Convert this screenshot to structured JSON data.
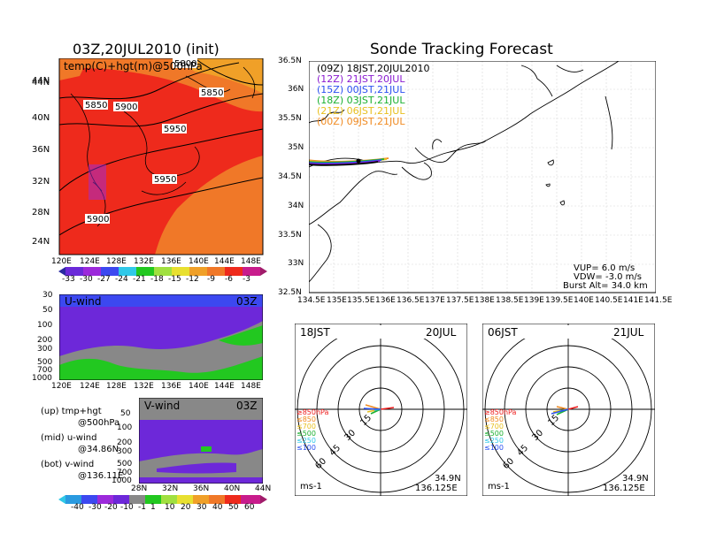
{
  "titles": {
    "left": "03Z,20JUL2010 (init)",
    "right": "Sonde Tracking Forecast"
  },
  "colors": {
    "hot": "#ee2a1c",
    "orange": "#f07828",
    "amber": "#f0a028",
    "purple": "#6d28d9",
    "blue": "#3355ee",
    "green": "#22c820",
    "gray": "#888888",
    "ltblue": "#30c8e8"
  },
  "map500": {
    "label": "temp(C)+hgt(m)@500hPa",
    "x_ticks": [
      "120E",
      "124E",
      "128E",
      "132E",
      "136E",
      "140E",
      "144E",
      "148E"
    ],
    "y_ticks": [
      "44N",
      "40N",
      "36N",
      "32N",
      "28N",
      "24N"
    ],
    "contour_labels": [
      "5800",
      "5850",
      "5850",
      "5900",
      "5950",
      "5950",
      "5900"
    ],
    "colorbar": [
      "-33",
      "-30",
      "-27",
      "-24",
      "-21",
      "-18",
      "-15",
      "-12",
      "-9",
      "-6",
      "-3"
    ]
  },
  "uwind": {
    "label": "U-wind",
    "time": "03Z",
    "y_ticks": [
      "30",
      "50",
      "100",
      "200",
      "300",
      "500",
      "700",
      "1000"
    ],
    "x_ticks": [
      "120E",
      "124E",
      "128E",
      "132E",
      "136E",
      "140E",
      "144E",
      "148E"
    ]
  },
  "vwind": {
    "label": "V-wind",
    "time": "03Z",
    "y_ticks": [
      "50",
      "100",
      "200",
      "300",
      "500",
      "700",
      "1000"
    ],
    "x_ticks": [
      "28N",
      "32N",
      "36N",
      "40N",
      "44N"
    ],
    "colorbar": [
      "-40",
      "-30",
      "-20",
      "-10",
      "-1",
      "1",
      "10",
      "20",
      "30",
      "40",
      "50",
      "60"
    ]
  },
  "legend_left": {
    "up": [
      "(up) tmp+hgt",
      "@500hPa"
    ],
    "mid": [
      "(mid) u-wind",
      "@34.86N"
    ],
    "bot": [
      "(bot) v-wind",
      "@136.11E"
    ]
  },
  "track": {
    "x_ticks": [
      "134.5E",
      "135E",
      "135.5E",
      "136E",
      "136.5E",
      "137E",
      "137.5E",
      "138E",
      "138.5E",
      "139E",
      "139.5E",
      "140E",
      "140.5E",
      "141E",
      "141.5E"
    ],
    "y_ticks": [
      "36.5N",
      "36N",
      "35.5N",
      "35N",
      "34.5N",
      "34N",
      "33.5N",
      "33N",
      "32.5N"
    ],
    "legend": [
      {
        "label": "(09Z)  18JST,20JUL2010",
        "color": "#000000"
      },
      {
        "label": "(12Z)  21JST,20JUL",
        "color": "#8a1ad0"
      },
      {
        "label": "(15Z)  00JST,21JUL",
        "color": "#2a50f0"
      },
      {
        "label": "(18Z)  03JST,21JUL",
        "color": "#1ab030"
      },
      {
        "label": "(21Z)  06JST,21JUL",
        "color": "#e8c020"
      },
      {
        "label": "(00Z)  09JST,21JUL",
        "color": "#f08a20"
      }
    ],
    "vup": "VUP= 6.0  m/s",
    "vdw": "VDW= -3.0  m/s",
    "burst": "Burst Alt= 34.0  km"
  },
  "polar": [
    {
      "left": "18JST",
      "right": "20JUL",
      "lat": "34.9N",
      "lon": "136.125E",
      "unit": "ms-1"
    },
    {
      "left": "06JST",
      "right": "21JUL",
      "lat": "34.9N",
      "lon": "136.125E",
      "unit": "ms-1"
    }
  ],
  "polar_rings": [
    "15",
    "30",
    "45",
    "60"
  ],
  "polar_levels": [
    {
      "label": "≥850hPa",
      "color": "#ee1c1c"
    },
    {
      "label": "≤850",
      "color": "#f08a20"
    },
    {
      "label": "≤700",
      "color": "#e8c020"
    },
    {
      "label": "≤500",
      "color": "#1ab030"
    },
    {
      "label": "≤250",
      "color": "#30c8e8"
    },
    {
      "label": "≤100",
      "color": "#2a50f0"
    }
  ]
}
